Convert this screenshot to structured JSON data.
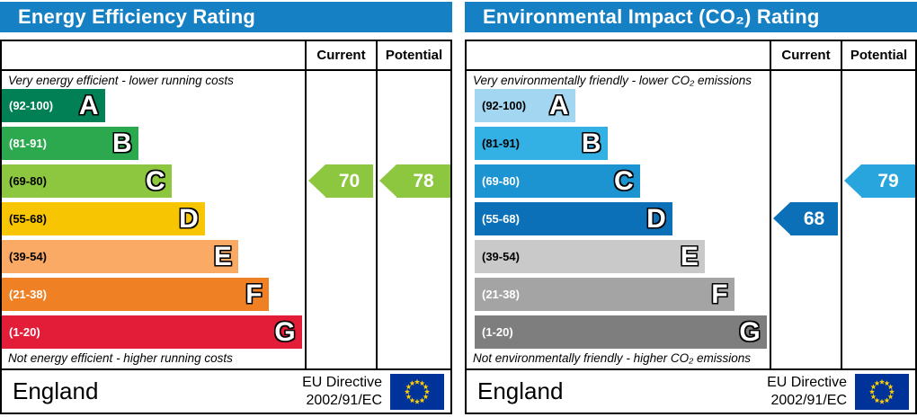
{
  "eu_flag": {
    "background": "#003399",
    "star_color": "#ffcc00",
    "stars": 12
  },
  "chart_data": [
    {
      "type": "bar",
      "variant": "epc-rating-scale",
      "title": "Energy Efficiency Rating",
      "columns": [
        "Current",
        "Potential"
      ],
      "top_caption": "Very energy efficient - lower running costs",
      "bottom_caption": "Not energy efficient - higher running costs",
      "bands": [
        {
          "letter": "A",
          "range": "(92-100)",
          "min": 92,
          "max": 100,
          "color": "#008054",
          "label_color": "#ffffff",
          "width_pct": 34
        },
        {
          "letter": "B",
          "range": "(81-91)",
          "min": 81,
          "max": 91,
          "color": "#2ca94f",
          "label_color": "#ffffff",
          "width_pct": 45
        },
        {
          "letter": "C",
          "range": "(69-80)",
          "min": 69,
          "max": 80,
          "color": "#8dc63f",
          "label_color": "#000000",
          "width_pct": 56
        },
        {
          "letter": "D",
          "range": "(55-68)",
          "min": 55,
          "max": 68,
          "color": "#f7c501",
          "label_color": "#000000",
          "width_pct": 67
        },
        {
          "letter": "E",
          "range": "(39-54)",
          "min": 39,
          "max": 54,
          "color": "#fbaa65",
          "label_color": "#000000",
          "width_pct": 78
        },
        {
          "letter": "F",
          "range": "(21-38)",
          "min": 21,
          "max": 38,
          "color": "#ef8023",
          "label_color": "#ffffff",
          "width_pct": 88
        },
        {
          "letter": "G",
          "range": "(1-20)",
          "min": 1,
          "max": 20,
          "color": "#e31c38",
          "label_color": "#ffffff",
          "width_pct": 99
        }
      ],
      "current": {
        "value": 70,
        "band": "C",
        "band_index": 2,
        "color": "#8dc63f"
      },
      "potential": {
        "value": 78,
        "band": "C",
        "band_index": 2,
        "color": "#8dc63f"
      },
      "footer": {
        "region": "England",
        "directive_line1": "EU Directive",
        "directive_line2": "2002/91/EC"
      }
    },
    {
      "type": "bar",
      "variant": "epc-rating-scale",
      "title": "Environmental Impact (CO₂) Rating",
      "columns": [
        "Current",
        "Potential"
      ],
      "top_caption": "Very environmentally friendly - lower CO₂ emissions",
      "bottom_caption": "Not environmentally friendly - higher CO₂ emissions",
      "bands": [
        {
          "letter": "A",
          "range": "(92-100)",
          "min": 92,
          "max": 100,
          "color": "#a3d6f1",
          "label_color": "#000000",
          "width_pct": 34
        },
        {
          "letter": "B",
          "range": "(81-91)",
          "min": 81,
          "max": 91,
          "color": "#33b1e5",
          "label_color": "#000000",
          "width_pct": 45
        },
        {
          "letter": "C",
          "range": "(69-80)",
          "min": 69,
          "max": 80,
          "color": "#1d94d2",
          "label_color": "#ffffff",
          "width_pct": 56
        },
        {
          "letter": "D",
          "range": "(55-68)",
          "min": 55,
          "max": 68,
          "color": "#0c70b9",
          "label_color": "#ffffff",
          "width_pct": 67
        },
        {
          "letter": "E",
          "range": "(39-54)",
          "min": 39,
          "max": 54,
          "color": "#c9c9c9",
          "label_color": "#000000",
          "width_pct": 78
        },
        {
          "letter": "F",
          "range": "(21-38)",
          "min": 21,
          "max": 38,
          "color": "#a4a4a4",
          "label_color": "#ffffff",
          "width_pct": 88
        },
        {
          "letter": "G",
          "range": "(1-20)",
          "min": 1,
          "max": 20,
          "color": "#7e7e7e",
          "label_color": "#ffffff",
          "width_pct": 99
        }
      ],
      "current": {
        "value": 68,
        "band": "D",
        "band_index": 3,
        "color": "#0c70b9"
      },
      "potential": {
        "value": 79,
        "band": "C",
        "band_index": 2,
        "color": "#29a5dd"
      },
      "footer": {
        "region": "England",
        "directive_line1": "EU Directive",
        "directive_line2": "2002/91/EC"
      }
    }
  ]
}
